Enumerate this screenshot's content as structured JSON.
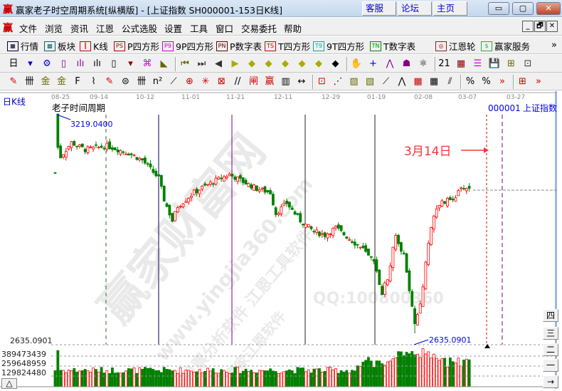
{
  "window": {
    "logo": "赢",
    "title": "赢家老子时空周期系统[纵横版] - [上证指数  SH000001-153日K线]",
    "links": [
      "客服",
      "论坛",
      "主页"
    ],
    "controls": {
      "minimize": "▭",
      "maximize": "▢",
      "close": "✕"
    }
  },
  "menu": {
    "items": [
      "文件",
      "浏览",
      "资讯",
      "江恩",
      "公式选股",
      "设置",
      "工具",
      "窗口",
      "交易委托",
      "帮助"
    ],
    "mdi_controls": [
      "_",
      "🗗",
      "✕"
    ]
  },
  "toolbar1": {
    "items": [
      {
        "icon": "quotes-table-icon",
        "label": "行情",
        "badge": "▦"
      },
      {
        "icon": "sector-blocks-icon",
        "label": "板块",
        "badge": "▩"
      },
      {
        "icon": "candlestick-icon",
        "label": "K线",
        "badge": "┃"
      },
      {
        "icon": "ps-icon",
        "label": "P四方形",
        "badge": "PS"
      },
      {
        "icon": "p9-icon",
        "label": "9P四方形",
        "badge": "P9"
      },
      {
        "icon": "pn-icon",
        "label": "P数字表",
        "badge": "PN"
      },
      {
        "icon": "ts-icon",
        "label": "T四方形",
        "badge": "TS"
      },
      {
        "icon": "t9-icon",
        "label": "9T四方形",
        "badge": "T9"
      },
      {
        "icon": "tn-icon",
        "label": "T数字表",
        "badge": "TN"
      },
      {
        "icon": "gann-wheel-icon",
        "label": "江恩轮",
        "badge": "◎"
      },
      {
        "icon": "dollar-icon",
        "label": "赢家服务",
        "badge": "$"
      }
    ],
    "more": "»"
  },
  "toolbar2": {
    "glyphs": [
      "日",
      "▾",
      "⚙",
      "▯",
      "ılı",
      "ılı",
      "▯",
      "▾",
      "⌘",
      "◣",
      "⏮",
      "⏭",
      "◀",
      "▶",
      "◆",
      "◆",
      "◆",
      "◆",
      "◆",
      "◆",
      "✋",
      "+",
      "⋀",
      "☗",
      "⚛",
      "21",
      "▦",
      "☰",
      "💾",
      "⊞",
      "⊡"
    ]
  },
  "toolbar3": {
    "glyphs": [
      "✎",
      "卌",
      "金",
      "金",
      "F",
      "⌇",
      "✎",
      "⊜",
      "卌",
      "n²",
      "⟋",
      "⊕",
      "✳",
      "⊠",
      "//",
      "闸",
      "赢",
      "▥",
      "↔",
      "⊡",
      "⋰",
      "▨",
      "▧",
      "⟋",
      "⋀",
      "▦",
      "▦",
      "⫽",
      "%",
      "%",
      "»",
      "⊞",
      "»"
    ]
  },
  "chart": {
    "period_label": "日K线",
    "indicator_title": "老子时间周期",
    "symbol": "000001",
    "symbol_name": "上证指数",
    "date_ticks": [
      "08-25",
      "09-14",
      "10-12",
      "11-01",
      "11-21",
      "12-11",
      "12-29",
      "01-19",
      "02-08",
      "03-07",
      "03-27"
    ],
    "high_label": "3219.0400",
    "low_label": "2635.0901",
    "axis_low_label": "2635.0901",
    "annotation": "3月14日",
    "watermarks": [
      "赢家财富网",
      "股票分析软件 江恩工具软件",
      "www.yingjia360.com",
      "QQ:100800360",
      "赢家江恩软件"
    ],
    "volume_ticks": [
      "389473439",
      "259648959",
      "129824480"
    ],
    "side_buttons": [
      "四",
      "三",
      "二",
      "一",
      "→"
    ],
    "expand_button": "△",
    "colors": {
      "up": "#ff0000",
      "down": "#008000",
      "marker": "#0000ff",
      "annotation": "#ff3333"
    }
  },
  "chart_data": {
    "type": "candlestick",
    "bars": 153,
    "price_range": [
      2635.0901,
      3219.04
    ],
    "close_keypoints": [
      [
        0,
        3062
      ],
      [
        1,
        3200
      ],
      [
        2,
        3105
      ],
      [
        6,
        3143
      ],
      [
        11,
        3124
      ],
      [
        19,
        3134
      ],
      [
        27,
        3115
      ],
      [
        32,
        3096
      ],
      [
        38,
        3048
      ],
      [
        40,
        2991
      ],
      [
        43,
        2935
      ],
      [
        45,
        2973
      ],
      [
        51,
        3010
      ],
      [
        58,
        3039
      ],
      [
        64,
        3058
      ],
      [
        69,
        3039
      ],
      [
        74,
        3020
      ],
      [
        79,
        3010
      ],
      [
        81,
        2954
      ],
      [
        85,
        2982
      ],
      [
        90,
        2935
      ],
      [
        95,
        2906
      ],
      [
        99,
        2897
      ],
      [
        103,
        2916
      ],
      [
        108,
        2887
      ],
      [
        113,
        2859
      ],
      [
        117,
        2821
      ],
      [
        120,
        2745
      ],
      [
        122,
        2783
      ],
      [
        125,
        2897
      ],
      [
        128,
        2840
      ],
      [
        130,
        2745
      ],
      [
        132,
        2660
      ],
      [
        134,
        2707
      ],
      [
        137,
        2878
      ],
      [
        139,
        2954
      ],
      [
        142,
        2982
      ],
      [
        145,
        2991
      ],
      [
        147,
        3001
      ],
      [
        150,
        3025
      ],
      [
        152,
        3020
      ]
    ],
    "volume_range": [
      0,
      519297918
    ]
  }
}
